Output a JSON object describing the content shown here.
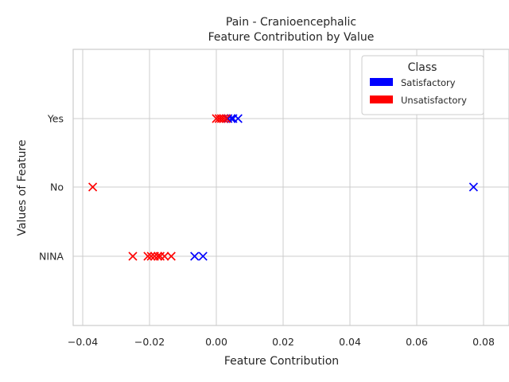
{
  "chart_data": {
    "type": "scatter",
    "title": "Pain - Cranioencephalic",
    "subtitle": "Feature Contribution by Value",
    "xlabel": "Feature Contribution",
    "ylabel": "Values of Feature",
    "xlim": [
      -0.042,
      0.082
    ],
    "x_ticks": [
      -0.04,
      -0.02,
      0.0,
      0.02,
      0.04,
      0.06,
      0.08
    ],
    "x_tick_labels": [
      "−0.04",
      "−0.02",
      "0.00",
      "0.02",
      "0.04",
      "0.06",
      "0.08"
    ],
    "categories": [
      "Yes",
      "No",
      "NINA"
    ],
    "grid": true,
    "marker": "x",
    "legend": {
      "title": "Class",
      "placement": "top-right",
      "entries": [
        {
          "name": "Satisfactory",
          "color": "#0000ff"
        },
        {
          "name": "Unsatisfactory",
          "color": "#ff0000"
        }
      ]
    },
    "series": [
      {
        "name": "Satisfactory",
        "color": "#0000ff",
        "points": [
          {
            "x": 0.0035,
            "y": "Yes"
          },
          {
            "x": 0.0045,
            "y": "Yes"
          },
          {
            "x": 0.005,
            "y": "Yes"
          },
          {
            "x": 0.0065,
            "y": "Yes"
          },
          {
            "x": 0.077,
            "y": "No"
          },
          {
            "x": -0.0065,
            "y": "NINA"
          },
          {
            "x": -0.004,
            "y": "NINA"
          }
        ]
      },
      {
        "name": "Unsatisfactory",
        "color": "#ff0000",
        "points": [
          {
            "x": 0.0,
            "y": "Yes"
          },
          {
            "x": 0.0008,
            "y": "Yes"
          },
          {
            "x": 0.0015,
            "y": "Yes"
          },
          {
            "x": 0.0022,
            "y": "Yes"
          },
          {
            "x": 0.003,
            "y": "Yes"
          },
          {
            "x": -0.037,
            "y": "No"
          },
          {
            "x": -0.025,
            "y": "NINA"
          },
          {
            "x": -0.0205,
            "y": "NINA"
          },
          {
            "x": -0.0195,
            "y": "NINA"
          },
          {
            "x": -0.0185,
            "y": "NINA"
          },
          {
            "x": -0.0175,
            "y": "NINA"
          },
          {
            "x": -0.0168,
            "y": "NINA"
          },
          {
            "x": -0.0155,
            "y": "NINA"
          },
          {
            "x": -0.0135,
            "y": "NINA"
          }
        ]
      }
    ]
  }
}
